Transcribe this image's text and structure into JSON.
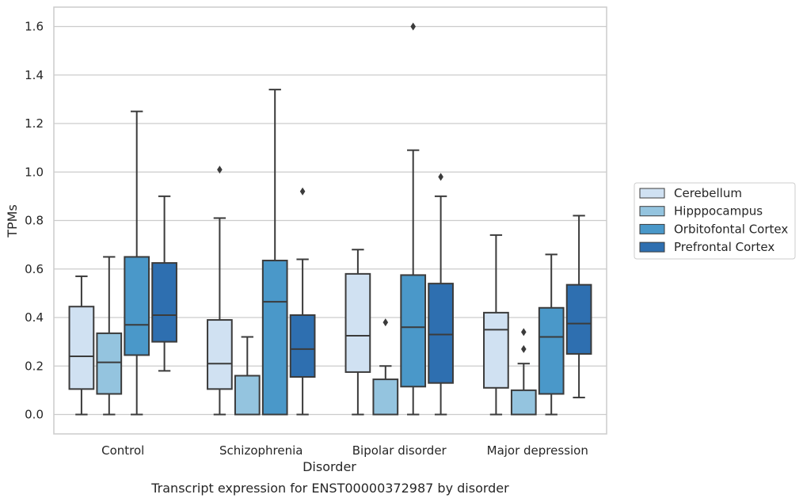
{
  "chart_data": {
    "type": "box",
    "title": "",
    "caption": "Transcript expression for ENST00000372987 by disorder",
    "xlabel": "Disorder",
    "ylabel": "TPMs",
    "ylim": [
      -0.08,
      1.68
    ],
    "yticks": [
      "0.0",
      "0.2",
      "0.4",
      "0.6",
      "0.8",
      "1.0",
      "1.2",
      "1.4",
      "1.6"
    ],
    "grid": "horizontal",
    "legend_position": "right",
    "categories": [
      "Control",
      "Schizophrenia",
      "Bipolar disorder",
      "Major depression"
    ],
    "series": [
      {
        "name": "Cerebellum",
        "color": "#d0e1f2",
        "boxes": [
          {
            "whisker_low": 0.0,
            "q1": 0.105,
            "median": 0.24,
            "q3": 0.445,
            "whisker_high": 0.57,
            "outliers": []
          },
          {
            "whisker_low": 0.0,
            "q1": 0.105,
            "median": 0.21,
            "q3": 0.39,
            "whisker_high": 0.81,
            "outliers": [
              1.01
            ]
          },
          {
            "whisker_low": 0.0,
            "q1": 0.175,
            "median": 0.325,
            "q3": 0.58,
            "whisker_high": 0.68,
            "outliers": []
          },
          {
            "whisker_low": 0.0,
            "q1": 0.11,
            "median": 0.35,
            "q3": 0.42,
            "whisker_high": 0.74,
            "outliers": []
          }
        ]
      },
      {
        "name": "Hipppocampus",
        "color": "#94c4df",
        "boxes": [
          {
            "whisker_low": 0.0,
            "q1": 0.085,
            "median": 0.215,
            "q3": 0.335,
            "whisker_high": 0.65,
            "outliers": []
          },
          {
            "whisker_low": 0.0,
            "q1": 0.0,
            "median": 0.16,
            "q3": 0.16,
            "whisker_high": 0.32,
            "outliers": []
          },
          {
            "whisker_low": 0.0,
            "q1": 0.0,
            "median": 0.0,
            "q3": 0.145,
            "whisker_high": 0.2,
            "outliers": [
              0.38
            ]
          },
          {
            "whisker_low": 0.0,
            "q1": 0.0,
            "median": 0.0,
            "q3": 0.1,
            "whisker_high": 0.21,
            "outliers": [
              0.27,
              0.34
            ]
          }
        ]
      },
      {
        "name": "Orbitofontal Cortex",
        "color": "#4a98c9",
        "boxes": [
          {
            "whisker_low": 0.0,
            "q1": 0.245,
            "median": 0.37,
            "q3": 0.65,
            "whisker_high": 1.25,
            "outliers": []
          },
          {
            "whisker_low": 0.0,
            "q1": 0.0,
            "median": 0.465,
            "q3": 0.635,
            "whisker_high": 1.34,
            "outliers": []
          },
          {
            "whisker_low": 0.0,
            "q1": 0.115,
            "median": 0.36,
            "q3": 0.575,
            "whisker_high": 1.09,
            "outliers": [
              1.6
            ]
          },
          {
            "whisker_low": 0.0,
            "q1": 0.085,
            "median": 0.32,
            "q3": 0.44,
            "whisker_high": 0.66,
            "outliers": []
          }
        ]
      },
      {
        "name": "Prefrontal Cortex",
        "color": "#2e6fb0",
        "boxes": [
          {
            "whisker_low": 0.18,
            "q1": 0.3,
            "median": 0.41,
            "q3": 0.625,
            "whisker_high": 0.9,
            "outliers": []
          },
          {
            "whisker_low": 0.0,
            "q1": 0.155,
            "median": 0.27,
            "q3": 0.41,
            "whisker_high": 0.64,
            "outliers": [
              0.92
            ]
          },
          {
            "whisker_low": 0.0,
            "q1": 0.13,
            "median": 0.33,
            "q3": 0.54,
            "whisker_high": 0.9,
            "outliers": [
              0.98
            ]
          },
          {
            "whisker_low": 0.07,
            "q1": 0.25,
            "median": 0.375,
            "q3": 0.535,
            "whisker_high": 0.82,
            "outliers": []
          }
        ]
      }
    ]
  }
}
